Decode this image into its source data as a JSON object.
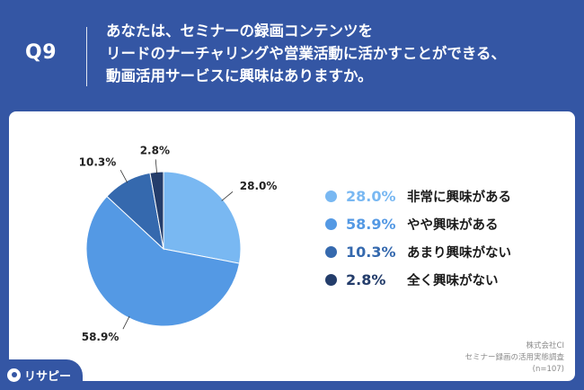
{
  "header": {
    "q_number": "Q9",
    "question_lines": [
      "あなたは、セミナーの録画コンテンツを",
      "リードのナーチャリングや営業活動に活かすことができる、",
      "動画活用サービスに興味はありますか。"
    ]
  },
  "chart_data": {
    "type": "pie",
    "start_angle_deg": 0,
    "direction": "clockwise",
    "slices": [
      {
        "label": "非常に興味がある",
        "value": 28.0,
        "display": "28.0%",
        "color": "#79b8f2"
      },
      {
        "label": "やや興味がある",
        "value": 58.9,
        "display": "58.9%",
        "color": "#5499e4"
      },
      {
        "label": "あまり興味がない",
        "value": 10.3,
        "display": "10.3%",
        "color": "#3569ae"
      },
      {
        "label": "全く興味がない",
        "value": 2.8,
        "display": "2.8%",
        "color": "#243d6b"
      }
    ],
    "legend_placement": "right"
  },
  "source": {
    "company": "株式会社CI",
    "survey": "セミナー録画の活用実態調査",
    "sample": "(n=107)"
  },
  "logo": {
    "text": "リサピー"
  }
}
